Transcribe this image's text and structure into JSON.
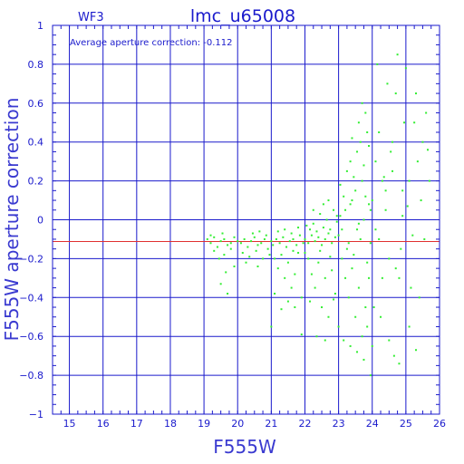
{
  "chart_data": {
    "type": "scatter",
    "title": "lmc_u65008",
    "panel_label": "WF3",
    "xlabel": "F555W",
    "ylabel": "F555W aperture correction",
    "annotation": "Average aperture correction: -0.112",
    "xlim": [
      14.5,
      26
    ],
    "ylim": [
      -1,
      1
    ],
    "x_ticks": [
      15,
      16,
      17,
      18,
      19,
      20,
      21,
      22,
      23,
      24,
      25,
      26
    ],
    "y_ticks": [
      -1,
      -0.8,
      -0.6,
      -0.4,
      -0.2,
      0,
      0.2,
      0.4,
      0.6,
      0.8,
      1
    ],
    "grid": true,
    "reference_line": {
      "y": -0.112,
      "color": "#e03030"
    },
    "colors": {
      "frame": "#1a1acc",
      "points": "#33ee33",
      "reference_line": "#e03030"
    },
    "series": [
      {
        "points": [
          [
            19.1,
            -0.1
          ],
          [
            19.2,
            -0.12
          ],
          [
            19.3,
            -0.09
          ],
          [
            19.4,
            -0.14
          ],
          [
            19.5,
            -0.11
          ],
          [
            19.6,
            -0.1
          ],
          [
            19.7,
            -0.13
          ],
          [
            19.8,
            -0.12
          ],
          [
            19.9,
            -0.09
          ],
          [
            20.0,
            -0.11
          ],
          [
            19.3,
            -0.16
          ],
          [
            19.6,
            -0.18
          ],
          [
            19.8,
            -0.15
          ],
          [
            19.45,
            -0.2
          ],
          [
            19.65,
            -0.27
          ],
          [
            19.5,
            -0.33
          ],
          [
            19.7,
            -0.38
          ],
          [
            19.9,
            -0.24
          ],
          [
            19.2,
            -0.08
          ],
          [
            19.55,
            -0.07
          ],
          [
            20.1,
            -0.12
          ],
          [
            20.2,
            -0.1
          ],
          [
            20.3,
            -0.14
          ],
          [
            20.4,
            -0.11
          ],
          [
            20.5,
            -0.09
          ],
          [
            20.6,
            -0.13
          ],
          [
            20.7,
            -0.12
          ],
          [
            20.8,
            -0.1
          ],
          [
            20.9,
            -0.15
          ],
          [
            21.0,
            -0.11
          ],
          [
            20.15,
            -0.17
          ],
          [
            20.35,
            -0.19
          ],
          [
            20.55,
            -0.16
          ],
          [
            20.75,
            -0.2
          ],
          [
            20.95,
            -0.18
          ],
          [
            20.45,
            -0.07
          ],
          [
            20.65,
            -0.06
          ],
          [
            20.85,
            -0.08
          ],
          [
            20.25,
            -0.22
          ],
          [
            20.6,
            -0.24
          ],
          [
            21.05,
            -0.13
          ],
          [
            21.15,
            -0.1
          ],
          [
            21.25,
            -0.12
          ],
          [
            21.35,
            -0.09
          ],
          [
            21.45,
            -0.14
          ],
          [
            21.55,
            -0.11
          ],
          [
            21.65,
            -0.1
          ],
          [
            21.75,
            -0.13
          ],
          [
            21.85,
            -0.08
          ],
          [
            21.95,
            -0.12
          ],
          [
            21.1,
            -0.2
          ],
          [
            21.2,
            -0.25
          ],
          [
            21.3,
            -0.18
          ],
          [
            21.4,
            -0.3
          ],
          [
            21.5,
            -0.22
          ],
          [
            21.6,
            -0.35
          ],
          [
            21.7,
            -0.28
          ],
          [
            21.8,
            -0.17
          ],
          [
            21.9,
            -0.4
          ],
          [
            21.0,
            -0.55
          ],
          [
            21.2,
            -0.06
          ],
          [
            21.4,
            -0.05
          ],
          [
            21.6,
            -0.07
          ],
          [
            21.8,
            -0.04
          ],
          [
            21.3,
            -0.46
          ],
          [
            21.7,
            -0.45
          ],
          [
            21.9,
            -0.59
          ],
          [
            21.1,
            -0.38
          ],
          [
            21.5,
            -0.42
          ],
          [
            21.65,
            -0.16
          ],
          [
            22.0,
            -0.1
          ],
          [
            22.1,
            -0.12
          ],
          [
            22.2,
            -0.08
          ],
          [
            22.3,
            -0.11
          ],
          [
            22.4,
            -0.09
          ],
          [
            22.5,
            -0.13
          ],
          [
            22.6,
            -0.1
          ],
          [
            22.7,
            -0.07
          ],
          [
            22.8,
            -0.12
          ],
          [
            22.9,
            -0.09
          ],
          [
            22.05,
            -0.03
          ],
          [
            22.15,
            -0.05
          ],
          [
            22.25,
            -0.02
          ],
          [
            22.35,
            -0.06
          ],
          [
            22.45,
            0.03
          ],
          [
            22.55,
            -0.04
          ],
          [
            22.65,
            0.0
          ],
          [
            22.75,
            -0.05
          ],
          [
            22.85,
            0.05
          ],
          [
            22.95,
            -0.01
          ],
          [
            22.1,
            -0.2
          ],
          [
            22.2,
            -0.28
          ],
          [
            22.3,
            -0.35
          ],
          [
            22.4,
            -0.22
          ],
          [
            22.5,
            -0.45
          ],
          [
            22.6,
            -0.3
          ],
          [
            22.7,
            -0.5
          ],
          [
            22.8,
            -0.26
          ],
          [
            22.9,
            -0.38
          ],
          [
            22.0,
            -0.17
          ],
          [
            22.35,
            -0.6
          ],
          [
            22.6,
            -0.62
          ],
          [
            22.75,
            -0.19
          ],
          [
            22.45,
            -0.16
          ],
          [
            22.85,
            -0.41
          ],
          [
            22.25,
            0.05
          ],
          [
            22.55,
            0.08
          ],
          [
            22.7,
            0.1
          ],
          [
            22.95,
            0.02
          ],
          [
            22.15,
            -0.42
          ],
          [
            23.0,
            -0.08
          ],
          [
            23.1,
            -0.05
          ],
          [
            23.2,
            0.05
          ],
          [
            23.3,
            -0.12
          ],
          [
            23.4,
            0.1
          ],
          [
            23.5,
            0.15
          ],
          [
            23.6,
            -0.02
          ],
          [
            23.7,
            0.2
          ],
          [
            23.8,
            0.12
          ],
          [
            23.9,
            0.08
          ],
          [
            23.05,
            0.18
          ],
          [
            23.15,
            0.12
          ],
          [
            23.25,
            0.25
          ],
          [
            23.35,
            0.3
          ],
          [
            23.45,
            0.22
          ],
          [
            23.55,
            0.35
          ],
          [
            23.65,
            0.4
          ],
          [
            23.75,
            0.28
          ],
          [
            23.85,
            0.45
          ],
          [
            23.95,
            0.05
          ],
          [
            23.1,
            -0.2
          ],
          [
            23.2,
            -0.3
          ],
          [
            23.3,
            -0.4
          ],
          [
            23.4,
            -0.25
          ],
          [
            23.5,
            -0.5
          ],
          [
            23.6,
            -0.35
          ],
          [
            23.7,
            -0.6
          ],
          [
            23.8,
            -0.45
          ],
          [
            23.9,
            -0.3
          ],
          [
            23.0,
            -0.55
          ],
          [
            23.15,
            -0.62
          ],
          [
            23.35,
            -0.65
          ],
          [
            23.55,
            -0.68
          ],
          [
            23.75,
            -0.72
          ],
          [
            23.85,
            -0.55
          ],
          [
            23.95,
            -0.8
          ],
          [
            23.6,
            0.5
          ],
          [
            23.7,
            0.6
          ],
          [
            23.8,
            0.55
          ],
          [
            23.9,
            0.38
          ],
          [
            23.25,
            -0.15
          ],
          [
            23.45,
            -0.18
          ],
          [
            23.65,
            -0.1
          ],
          [
            23.85,
            -0.22
          ],
          [
            23.05,
            0.02
          ],
          [
            23.35,
            0.08
          ],
          [
            23.55,
            -0.05
          ],
          [
            23.75,
            0.0
          ],
          [
            23.95,
            -0.12
          ],
          [
            23.4,
            0.42
          ],
          [
            24.0,
            0.1
          ],
          [
            24.1,
            0.3
          ],
          [
            24.2,
            -0.1
          ],
          [
            24.3,
            0.2
          ],
          [
            24.4,
            0.05
          ],
          [
            24.5,
            -0.2
          ],
          [
            24.6,
            0.4
          ],
          [
            24.7,
            0.65
          ],
          [
            24.8,
            -0.3
          ],
          [
            24.9,
            0.15
          ],
          [
            24.05,
            -0.45
          ],
          [
            24.15,
            0.8
          ],
          [
            24.25,
            -0.5
          ],
          [
            24.35,
            0.22
          ],
          [
            24.45,
            0.7
          ],
          [
            24.55,
            0.35
          ],
          [
            24.65,
            -0.7
          ],
          [
            24.75,
            0.85
          ],
          [
            24.85,
            -0.15
          ],
          [
            24.95,
            0.5
          ],
          [
            24.1,
            -0.05
          ],
          [
            24.2,
            0.45
          ],
          [
            24.3,
            -0.3
          ],
          [
            24.4,
            0.15
          ],
          [
            24.5,
            -0.62
          ],
          [
            24.6,
            0.25
          ],
          [
            24.7,
            -0.25
          ],
          [
            24.8,
            -0.74
          ],
          [
            24.9,
            0.02
          ],
          [
            24.0,
            -0.65
          ],
          [
            25.0,
            0.78
          ],
          [
            25.1,
            0.2
          ],
          [
            25.2,
            -0.08
          ],
          [
            25.3,
            -0.67
          ],
          [
            25.4,
            -0.4
          ],
          [
            25.5,
            0.4
          ],
          [
            25.6,
            0.55
          ],
          [
            25.7,
            0.2
          ],
          [
            25.05,
            0.07
          ],
          [
            25.25,
            0.5
          ],
          [
            25.15,
            -0.35
          ],
          [
            25.35,
            0.3
          ],
          [
            25.45,
            0.1
          ],
          [
            25.55,
            -0.1
          ],
          [
            25.65,
            0.36
          ],
          [
            25.1,
            -0.55
          ],
          [
            25.3,
            0.65
          ]
        ]
      }
    ]
  }
}
